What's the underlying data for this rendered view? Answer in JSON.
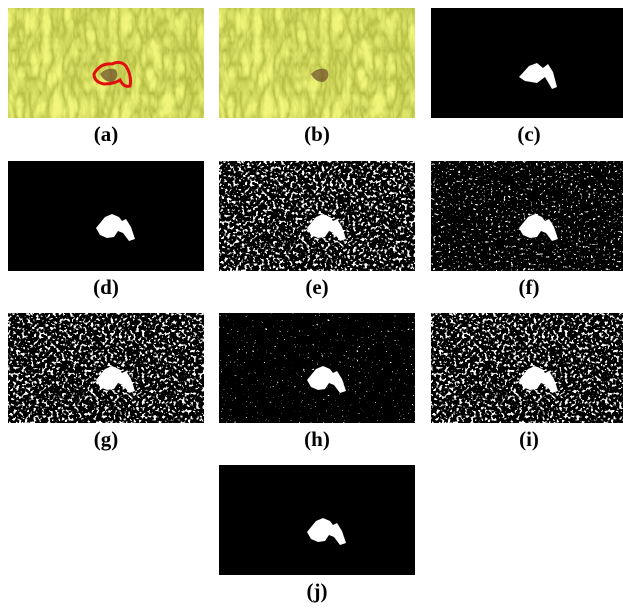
{
  "figure": {
    "panels": [
      {
        "label": "(a)"
      },
      {
        "label": "(b)"
      },
      {
        "label": "(c)"
      },
      {
        "label": "(d)"
      },
      {
        "label": "(e)"
      },
      {
        "label": "(f)"
      },
      {
        "label": "(g)"
      },
      {
        "label": "(h)"
      },
      {
        "label": "(i)"
      },
      {
        "label": "(j)"
      }
    ]
  }
}
